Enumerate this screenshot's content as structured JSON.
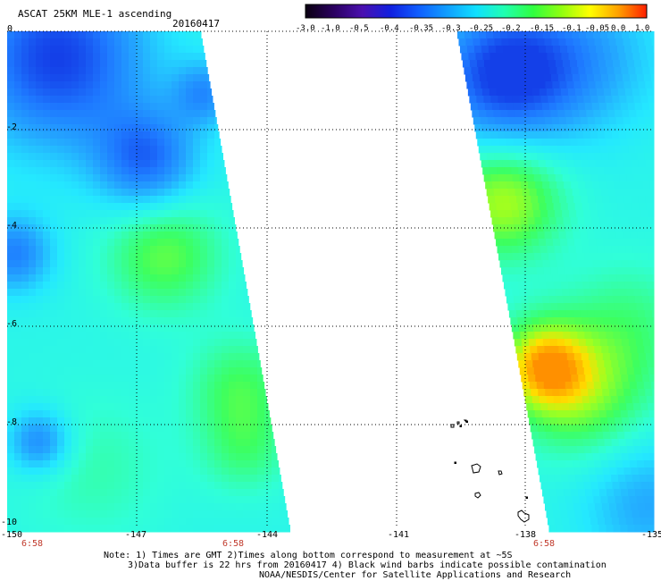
{
  "header": {
    "title": "ASCAT 25KM MLE-1 ascending",
    "date": "20160417"
  },
  "colorbar": {
    "labels": [
      "-3.0",
      "-1.0",
      "-0.5",
      "-0.4",
      "-0.35",
      "-0.3",
      "-0.25",
      "-0.2",
      "-0.15",
      "-0.1",
      "-0.05",
      "0.0",
      "1.0"
    ],
    "colors": [
      "#0a0010",
      "#2a0060",
      "#4a10b0",
      "#1020e0",
      "#1060ff",
      "#10a0ff",
      "#10e0ff",
      "#20ffb0",
      "#30ff40",
      "#90ff10",
      "#ffff00",
      "#ffa000",
      "#ff2000"
    ]
  },
  "map": {
    "lon_labels": [
      "-150",
      "-147",
      "-144",
      "-141",
      "-138",
      "-135"
    ],
    "lat_labels": [
      "0",
      "-2",
      "-4",
      "-6",
      "-8",
      "-10"
    ],
    "time_labels": [
      "6:58",
      "6:58",
      "6:58"
    ],
    "swath_colors": {
      "deep_blue": "#1440e8",
      "blue": "#1e78ff",
      "sky": "#24a8ff",
      "cyan": "#24e8ff",
      "aqua": "#30ffd8",
      "green": "#3cff60",
      "lime": "#a0ff20",
      "yellow": "#ffe000",
      "orange": "#ff9000"
    }
  },
  "footer": {
    "note_line1": "Note: 1) Times are GMT 2)Times along bottom correspond to measurement at ~5S",
    "note_line2": "3)Data buffer is 22 hrs from 20160417 4) Black wind barbs indicate possible contamination",
    "note_line3": "NOAA/NESDIS/Center for Satellite Applications and Research"
  }
}
